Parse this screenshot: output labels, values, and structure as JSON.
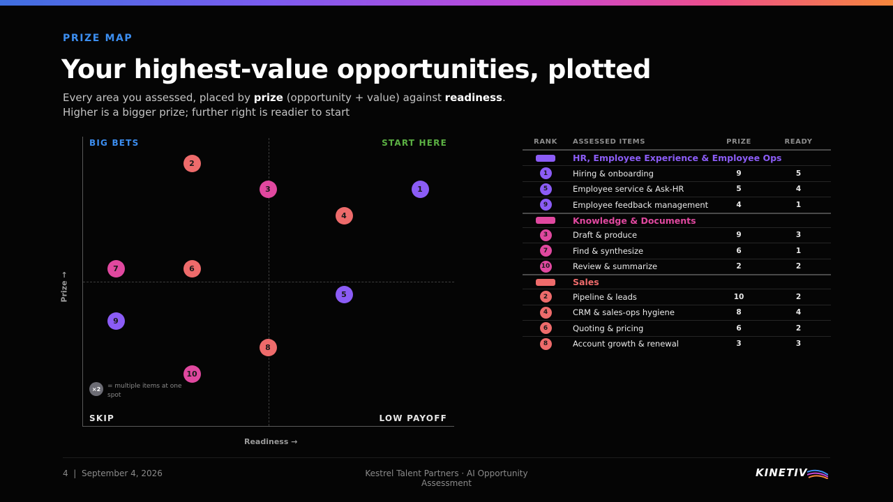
{
  "header": {
    "eyebrow": "PRIZE MAP",
    "title": "Your highest-value opportunities, plotted",
    "subtitle_line1_a": "Every area you assessed, placed by ",
    "subtitle_line1_b": "prize",
    "subtitle_line1_c": " (opportunity + value) against ",
    "subtitle_line1_d": "readiness",
    "subtitle_line1_e": ".",
    "subtitle_line2": "Higher is a bigger prize; further right is readier to start"
  },
  "colors": {
    "hr": "#8b5cf6",
    "knowledge": "#e0489f",
    "sales": "#ee6b6b"
  },
  "chart_data": {
    "type": "scatter",
    "title": "",
    "xlabel": "Readiness →",
    "ylabel": "Prize →",
    "quadrants": {
      "top_left": "BIG BETS",
      "top_right": "START HERE",
      "bottom_left": "SKIP",
      "bottom_right": "LOW PAYOFF"
    },
    "legend_note": {
      "badge": "×2",
      "text": "= multiple items at one spot"
    },
    "points": [
      {
        "rank": "1",
        "group": "hr",
        "prize": 9,
        "ready": 5
      },
      {
        "rank": "2",
        "group": "sales",
        "prize": 10,
        "ready": 2
      },
      {
        "rank": "3",
        "group": "knowledge",
        "prize": 9,
        "ready": 3
      },
      {
        "rank": "4",
        "group": "sales",
        "prize": 8,
        "ready": 4
      },
      {
        "rank": "5",
        "group": "hr",
        "prize": 5,
        "ready": 4
      },
      {
        "rank": "6",
        "group": "sales",
        "prize": 6,
        "ready": 2
      },
      {
        "rank": "7",
        "group": "knowledge",
        "prize": 6,
        "ready": 1
      },
      {
        "rank": "8",
        "group": "sales",
        "prize": 3,
        "ready": 3
      },
      {
        "rank": "9",
        "group": "hr",
        "prize": 4,
        "ready": 1
      },
      {
        "rank": "10",
        "group": "knowledge",
        "prize": 2,
        "ready": 2
      }
    ]
  },
  "table": {
    "headers": {
      "rank": "RANK",
      "item": "ASSESSED ITEMS",
      "prize": "PRIZE",
      "ready": "READY"
    },
    "groups": [
      {
        "key": "hr",
        "name": "HR, Employee Experience & Employee Ops",
        "rows": [
          {
            "rank": "1",
            "item": "Hiring & onboarding",
            "prize": "9",
            "ready": "5"
          },
          {
            "rank": "5",
            "item": "Employee service & Ask-HR",
            "prize": "5",
            "ready": "4"
          },
          {
            "rank": "9",
            "item": "Employee feedback management",
            "prize": "4",
            "ready": "1"
          }
        ]
      },
      {
        "key": "knowledge",
        "name": "Knowledge & Documents",
        "rows": [
          {
            "rank": "3",
            "item": "Draft & produce",
            "prize": "9",
            "ready": "3"
          },
          {
            "rank": "7",
            "item": "Find & synthesize",
            "prize": "6",
            "ready": "1"
          },
          {
            "rank": "10",
            "item": "Review & summarize",
            "prize": "2",
            "ready": "2"
          }
        ]
      },
      {
        "key": "sales",
        "name": "Sales",
        "rows": [
          {
            "rank": "2",
            "item": "Pipeline & leads",
            "prize": "10",
            "ready": "2"
          },
          {
            "rank": "4",
            "item": "CRM & sales-ops hygiene",
            "prize": "8",
            "ready": "4"
          },
          {
            "rank": "6",
            "item": "Quoting & pricing",
            "prize": "6",
            "ready": "2"
          },
          {
            "rank": "8",
            "item": "Account growth & renewal",
            "prize": "3",
            "ready": "3"
          }
        ]
      }
    ]
  },
  "footer": {
    "page": "4",
    "separator": "|",
    "date": "September 4, 2026",
    "center": "Kestrel Talent Partners · AI Opportunity Assessment",
    "logo": "KINETIV"
  }
}
